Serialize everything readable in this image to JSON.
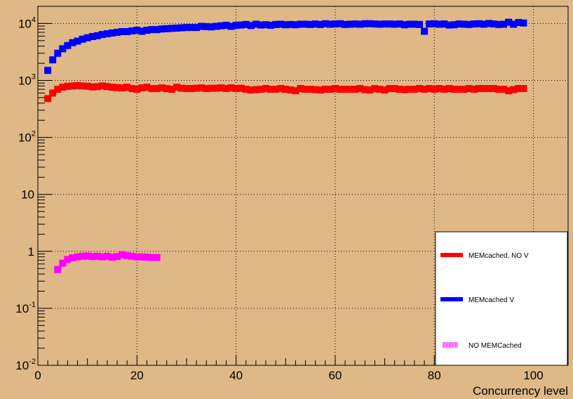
{
  "chart_data": {
    "type": "scatter",
    "title": "",
    "xlabel": "Concurrency level",
    "ylabel": "",
    "xlim": [
      0,
      107
    ],
    "ylim": [
      0.01,
      20000
    ],
    "yscale": "log",
    "grid": true,
    "legend_position": "bottom-right",
    "x_ticks": [
      0,
      20,
      40,
      60,
      80,
      100
    ],
    "x_tick_labels": [
      "0",
      "20",
      "40",
      "60",
      "80",
      "100"
    ],
    "y_ticks": [
      0.01,
      0.1,
      1,
      10,
      100,
      1000,
      10000
    ],
    "y_tick_labels": [
      {
        "base": "10",
        "exp": "-2"
      },
      {
        "base": "10",
        "exp": "-1"
      },
      {
        "base": "1",
        "exp": ""
      },
      {
        "base": "10",
        "exp": ""
      },
      {
        "base": "10",
        "exp": "2"
      },
      {
        "base": "10",
        "exp": "3"
      },
      {
        "base": "10",
        "exp": "4"
      }
    ],
    "series": [
      {
        "name": "MEMcached, NO V",
        "color": "#ff0000",
        "legend_style": "solid",
        "x": [
          2,
          3,
          4,
          5,
          6,
          7,
          8,
          9,
          10,
          11,
          12,
          13,
          14,
          15,
          16,
          17,
          18,
          19,
          20,
          21,
          22,
          23,
          24,
          25,
          26,
          27,
          28,
          29,
          30,
          31,
          32,
          33,
          34,
          35,
          36,
          37,
          38,
          39,
          40,
          41,
          42,
          43,
          44,
          45,
          46,
          47,
          48,
          49,
          50,
          51,
          52,
          53,
          54,
          55,
          56,
          57,
          58,
          59,
          60,
          61,
          62,
          63,
          64,
          65,
          66,
          67,
          68,
          69,
          70,
          71,
          72,
          73,
          74,
          75,
          76,
          77,
          78,
          79,
          80,
          81,
          82,
          83,
          84,
          85,
          86,
          87,
          88,
          89,
          90,
          91,
          92,
          93,
          94,
          95,
          96,
          97,
          98
        ],
        "y": [
          480,
          600,
          700,
          760,
          790,
          800,
          810,
          800,
          790,
          770,
          780,
          800,
          780,
          760,
          750,
          740,
          760,
          720,
          700,
          740,
          760,
          720,
          720,
          740,
          720,
          700,
          760,
          730,
          720,
          720,
          730,
          740,
          720,
          730,
          730,
          740,
          720,
          740,
          720,
          730,
          700,
          680,
          690,
          700,
          720,
          700,
          700,
          720,
          700,
          680,
          660,
          720,
          700,
          700,
          690,
          680,
          700,
          700,
          720,
          700,
          700,
          700,
          700,
          720,
          690,
          680,
          720,
          700,
          680,
          720,
          720,
          700,
          690,
          700,
          700,
          720,
          700,
          720,
          700,
          720,
          700,
          720,
          700,
          700,
          700,
          720,
          700,
          720,
          720,
          720,
          720,
          700,
          700,
          660,
          690,
          720,
          720
        ]
      },
      {
        "name": "MEMcached V",
        "color": "#0000ff",
        "legend_style": "solid",
        "x": [
          2,
          3,
          4,
          5,
          6,
          7,
          8,
          9,
          10,
          11,
          12,
          13,
          14,
          15,
          16,
          17,
          18,
          19,
          20,
          21,
          22,
          23,
          24,
          25,
          26,
          27,
          28,
          29,
          30,
          31,
          32,
          33,
          34,
          35,
          36,
          37,
          38,
          39,
          40,
          41,
          42,
          43,
          44,
          45,
          46,
          47,
          48,
          49,
          50,
          51,
          52,
          53,
          54,
          55,
          56,
          57,
          58,
          59,
          60,
          61,
          62,
          63,
          64,
          65,
          66,
          67,
          68,
          69,
          70,
          71,
          72,
          73,
          74,
          75,
          76,
          77,
          78,
          79,
          80,
          81,
          82,
          83,
          84,
          85,
          86,
          87,
          88,
          89,
          90,
          91,
          92,
          93,
          94,
          95,
          96,
          97,
          98
        ],
        "y": [
          1500,
          2300,
          3000,
          3600,
          4100,
          4600,
          4900,
          5300,
          5600,
          5900,
          6100,
          6400,
          6600,
          6800,
          7000,
          7200,
          7200,
          7400,
          7600,
          7300,
          7600,
          7800,
          7800,
          8000,
          8100,
          8200,
          8300,
          8400,
          8500,
          8500,
          8500,
          8900,
          8800,
          8700,
          8900,
          9100,
          9300,
          8900,
          9300,
          9400,
          9600,
          9200,
          9700,
          9400,
          9500,
          9300,
          9600,
          9700,
          9500,
          9600,
          9500,
          9700,
          9700,
          9600,
          9800,
          9600,
          9900,
          9700,
          9800,
          9900,
          9600,
          9700,
          9800,
          9700,
          9900,
          9900,
          9800,
          9700,
          9800,
          9800,
          9700,
          9800,
          9500,
          9700,
          9700,
          9600,
          7300,
          9800,
          9900,
          9700,
          9800,
          9400,
          9500,
          9800,
          9700,
          9600,
          9800,
          9900,
          9700,
          10000,
          9800,
          9600,
          9700,
          10500,
          9700,
          10400,
          10200
        ]
      },
      {
        "name": "NO MEMCached",
        "color": "#ff00ff",
        "legend_style": "hatched",
        "x": [
          4,
          5,
          6,
          7,
          8,
          9,
          10,
          11,
          12,
          13,
          14,
          15,
          16,
          17,
          18,
          19,
          20,
          21,
          22,
          23,
          24
        ],
        "y": [
          0.48,
          0.62,
          0.72,
          0.77,
          0.8,
          0.82,
          0.83,
          0.81,
          0.82,
          0.8,
          0.82,
          0.79,
          0.81,
          0.87,
          0.84,
          0.82,
          0.8,
          0.8,
          0.79,
          0.78,
          0.78
        ]
      }
    ]
  }
}
